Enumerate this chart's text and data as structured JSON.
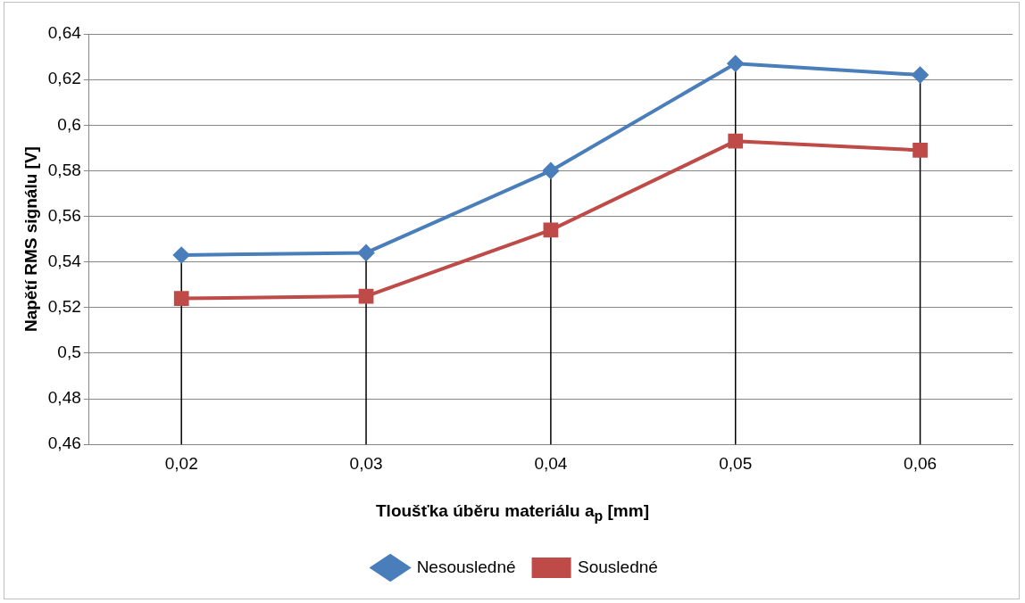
{
  "chart_data": {
    "type": "line",
    "xlabel": "Tloušťka úběru materiálu a$_{p}$ [mm]",
    "ylabel": "Napětí RMS signálu [V]",
    "categories": [
      "0,02",
      "0,03",
      "0,04",
      "0,05",
      "0,06"
    ],
    "series": [
      {
        "name": "Nesousledné",
        "color": "#4a7ebb",
        "values": [
          0.543,
          0.544,
          0.58,
          0.627,
          0.622
        ],
        "marker": "diamond"
      },
      {
        "name": "Sousledné",
        "color": "#be4b48",
        "values": [
          0.524,
          0.525,
          0.554,
          0.593,
          0.589
        ],
        "marker": "square"
      }
    ],
    "ylim": [
      0.46,
      0.64
    ],
    "yticks": [
      {
        "value": 0.46,
        "label": "0,46"
      },
      {
        "value": 0.48,
        "label": "0,48"
      },
      {
        "value": 0.5,
        "label": "0,5"
      },
      {
        "value": 0.52,
        "label": "0,52"
      },
      {
        "value": 0.54,
        "label": "0,54"
      },
      {
        "value": 0.56,
        "label": "0,56"
      },
      {
        "value": 0.58,
        "label": "0,58"
      },
      {
        "value": 0.6,
        "label": "0,6"
      },
      {
        "value": 0.62,
        "label": "0,62"
      },
      {
        "value": 0.64,
        "label": "0,64"
      }
    ],
    "ref_lines": [
      {
        "axis": "x",
        "value": "0,02",
        "color": "#000000"
      },
      {
        "axis": "x",
        "value": "0,03",
        "color": "#000000"
      },
      {
        "axis": "x",
        "value": "0,04",
        "color": "#000000"
      },
      {
        "axis": "x",
        "value": "0,05",
        "color": "#000000"
      },
      {
        "axis": "x",
        "value": "0,06",
        "color": "#000000"
      }
    ],
    "grid": "y",
    "legend": "bottom"
  }
}
